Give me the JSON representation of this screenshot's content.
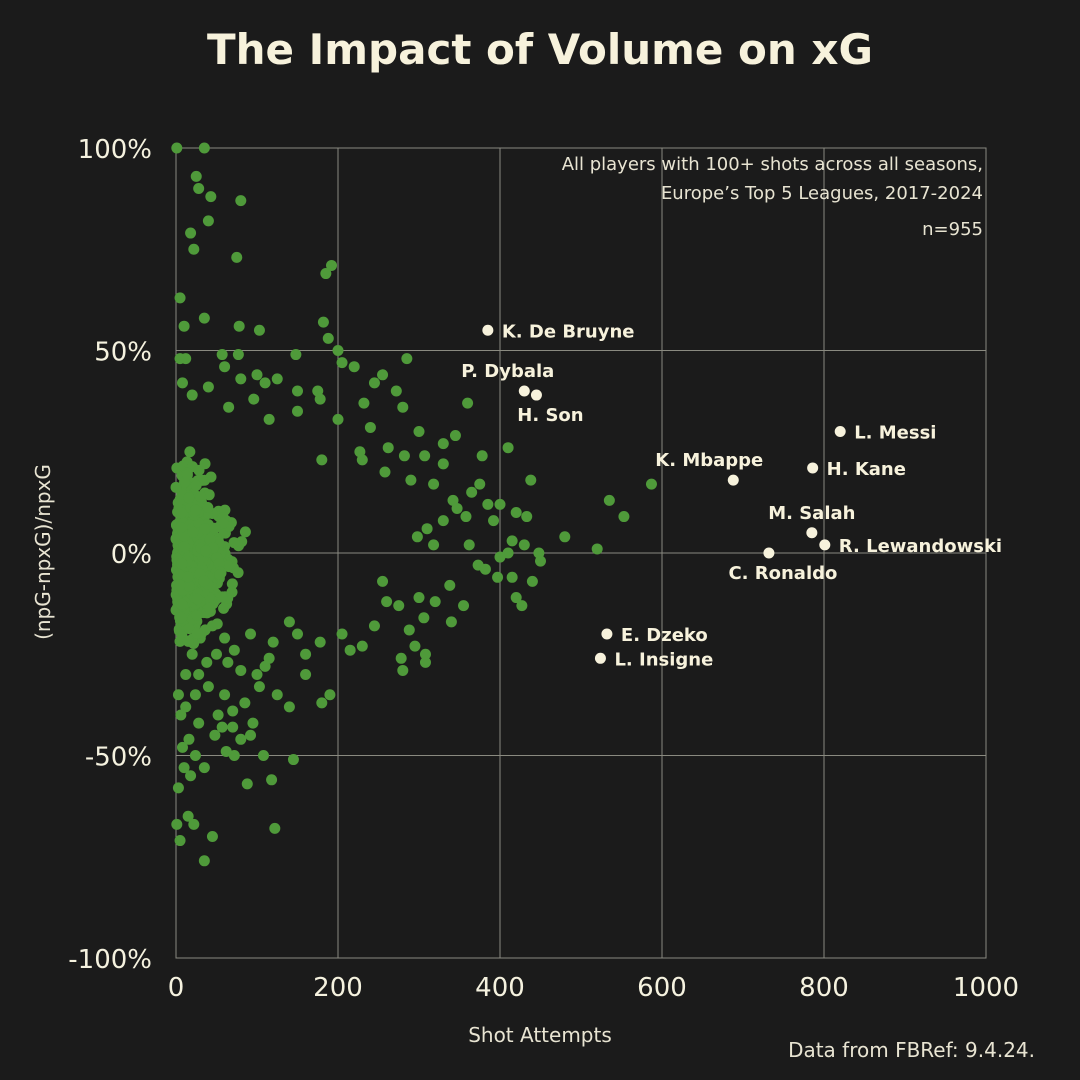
{
  "colors": {
    "background": "#1b1b1b",
    "grid": "#8a8a80",
    "axis_text": "#f5f2df",
    "title": "#f7f2dc",
    "points": "#4f9a3a",
    "highlight": "#f7f2dc"
  },
  "chart_data": {
    "type": "scatter",
    "title": "The Impact of Volume on xG",
    "xlabel": "Shot Attempts",
    "ylabel": "(npG-npxG)/npxG",
    "xlim": [
      0,
      1000
    ],
    "ylim": [
      -100,
      100
    ],
    "x_ticks": [
      0,
      200,
      400,
      600,
      800,
      1000
    ],
    "x_tick_labels": [
      "0",
      "200",
      "400",
      "600",
      "800",
      "1000"
    ],
    "y_ticks": [
      100,
      50,
      0,
      -50,
      -100
    ],
    "y_tick_labels": [
      "100%",
      "50%",
      "0%",
      "-50%",
      "-100%"
    ],
    "grid": true,
    "annotation_lines": [
      "All players with 100+ shots across all seasons,",
      "Europe’s Top 5 Leagues, 2017-2024"
    ],
    "n_label": "n=955",
    "source": "Data from FBRef: 9.4.24.",
    "highlighted": [
      {
        "name": "K. De Bruyne",
        "x": 385,
        "y": 55,
        "label_side": "right"
      },
      {
        "name": "P. Dybala",
        "x": 430,
        "y": 40,
        "label_side": "above-left"
      },
      {
        "name": "H. Son",
        "x": 445,
        "y": 39,
        "label_side": "below"
      },
      {
        "name": "L. Messi",
        "x": 820,
        "y": 30,
        "label_side": "right"
      },
      {
        "name": "H. Kane",
        "x": 786,
        "y": 21,
        "label_side": "right"
      },
      {
        "name": "K. Mbappe",
        "x": 688,
        "y": 18,
        "label_side": "above-left"
      },
      {
        "name": "M. Salah",
        "x": 785,
        "y": 5,
        "label_side": "above"
      },
      {
        "name": "R. Lewandowski",
        "x": 801,
        "y": 2,
        "label_side": "right"
      },
      {
        "name": "C. Ronaldo",
        "x": 732,
        "y": 0,
        "label_side": "below"
      },
      {
        "name": "E. Dzeko",
        "x": 532,
        "y": -20,
        "label_side": "right"
      },
      {
        "name": "L. Insigne",
        "x": 524,
        "y": -26,
        "label_side": "right"
      }
    ],
    "series": [
      {
        "points": [
          [
            1,
            100
          ],
          [
            35,
            100
          ],
          [
            25,
            93
          ],
          [
            28,
            90
          ],
          [
            43,
            88
          ],
          [
            80,
            87
          ],
          [
            40,
            82
          ],
          [
            18,
            79
          ],
          [
            22,
            75
          ],
          [
            75,
            73
          ],
          [
            192,
            71
          ],
          [
            185,
            69
          ],
          [
            5,
            63
          ],
          [
            35,
            58
          ],
          [
            10,
            56
          ],
          [
            78,
            56
          ],
          [
            103,
            55
          ],
          [
            182,
            57
          ],
          [
            188,
            53
          ],
          [
            200,
            50
          ],
          [
            148,
            49
          ],
          [
            57,
            49
          ],
          [
            77,
            49
          ],
          [
            5,
            48
          ],
          [
            285,
            48
          ],
          [
            12,
            48
          ],
          [
            205,
            47
          ],
          [
            220,
            46
          ],
          [
            255,
            44
          ],
          [
            100,
            44
          ],
          [
            110,
            42
          ],
          [
            125,
            43
          ],
          [
            80,
            43
          ],
          [
            60,
            46
          ],
          [
            245,
            42
          ],
          [
            272,
            40
          ],
          [
            8,
            42
          ],
          [
            40,
            41
          ],
          [
            150,
            40
          ],
          [
            175,
            40
          ],
          [
            232,
            37
          ],
          [
            280,
            36
          ],
          [
            360,
            37
          ],
          [
            178,
            38
          ],
          [
            96,
            38
          ],
          [
            65,
            36
          ],
          [
            20,
            39
          ],
          [
            150,
            35
          ],
          [
            115,
            33
          ],
          [
            200,
            33
          ],
          [
            240,
            31
          ],
          [
            300,
            30
          ],
          [
            345,
            29
          ],
          [
            330,
            27
          ],
          [
            262,
            26
          ],
          [
            410,
            26
          ],
          [
            227,
            25
          ],
          [
            180,
            23
          ],
          [
            230,
            23
          ],
          [
            282,
            24
          ],
          [
            307,
            24
          ],
          [
            378,
            24
          ],
          [
            330,
            22
          ],
          [
            258,
            20
          ],
          [
            290,
            18
          ],
          [
            375,
            17
          ],
          [
            438,
            18
          ],
          [
            318,
            17
          ],
          [
            365,
            15
          ],
          [
            342,
            13
          ],
          [
            385,
            12
          ],
          [
            400,
            12
          ],
          [
            420,
            10
          ],
          [
            358,
            9
          ],
          [
            330,
            8
          ],
          [
            347,
            11
          ],
          [
            392,
            8
          ],
          [
            433,
            9
          ],
          [
            310,
            6
          ],
          [
            298,
            4
          ],
          [
            318,
            2
          ],
          [
            362,
            2
          ],
          [
            415,
            3
          ],
          [
            430,
            2
          ],
          [
            448,
            0
          ],
          [
            480,
            4
          ],
          [
            535,
            13
          ],
          [
            553,
            9
          ],
          [
            587,
            17
          ],
          [
            520,
            1
          ],
          [
            410,
            0
          ],
          [
            400,
            -1
          ],
          [
            373,
            -3
          ],
          [
            382,
            -4
          ],
          [
            450,
            -2
          ],
          [
            415,
            -6
          ],
          [
            420,
            -11
          ],
          [
            440,
            -7
          ],
          [
            397,
            -6
          ],
          [
            427,
            -13
          ],
          [
            355,
            -13
          ],
          [
            340,
            -17
          ],
          [
            338,
            -8
          ],
          [
            300,
            -11
          ],
          [
            306,
            -16
          ],
          [
            320,
            -12
          ],
          [
            275,
            -13
          ],
          [
            288,
            -19
          ],
          [
            295,
            -23
          ],
          [
            278,
            -26
          ],
          [
            280,
            -29
          ],
          [
            308,
            -25
          ],
          [
            308,
            -27
          ],
          [
            255,
            -7
          ],
          [
            260,
            -12
          ],
          [
            245,
            -18
          ],
          [
            230,
            -23
          ],
          [
            215,
            -24
          ],
          [
            205,
            -20
          ],
          [
            178,
            -22
          ],
          [
            160,
            -25
          ],
          [
            150,
            -20
          ],
          [
            140,
            -17
          ],
          [
            120,
            -22
          ],
          [
            125,
            -35
          ],
          [
            140,
            -38
          ],
          [
            180,
            -37
          ],
          [
            190,
            -35
          ],
          [
            160,
            -30
          ],
          [
            145,
            -51
          ],
          [
            118,
            -56
          ],
          [
            122,
            -68
          ],
          [
            108,
            -50
          ],
          [
            88,
            -57
          ],
          [
            92,
            -45
          ],
          [
            72,
            -50
          ],
          [
            62,
            -49
          ],
          [
            57,
            -43
          ],
          [
            48,
            -45
          ],
          [
            45,
            -70
          ],
          [
            15,
            -65
          ],
          [
            22,
            -67
          ],
          [
            1,
            -67
          ],
          [
            5,
            -71
          ],
          [
            35,
            -76
          ],
          [
            28,
            -42
          ],
          [
            18,
            -55
          ],
          [
            10,
            -53
          ],
          [
            8,
            -48
          ],
          [
            3,
            -58
          ],
          [
            28,
            -30
          ],
          [
            40,
            -33
          ],
          [
            60,
            -35
          ],
          [
            70,
            -39
          ],
          [
            85,
            -37
          ],
          [
            100,
            -30
          ],
          [
            110,
            -28
          ],
          [
            92,
            -20
          ],
          [
            72,
            -24
          ],
          [
            60,
            -21
          ],
          [
            45,
            -18
          ],
          [
            30,
            -21
          ],
          [
            20,
            -25
          ],
          [
            12,
            -30
          ],
          [
            3,
            -35
          ],
          [
            6,
            -40
          ],
          [
            16,
            -46
          ],
          [
            24,
            -50
          ],
          [
            35,
            -53
          ],
          [
            52,
            -40
          ],
          [
            70,
            -43
          ],
          [
            80,
            -46
          ],
          [
            95,
            -42
          ],
          [
            103,
            -33
          ],
          [
            115,
            -26
          ],
          [
            80,
            -29
          ],
          [
            64,
            -27
          ],
          [
            50,
            -25
          ],
          [
            38,
            -27
          ],
          [
            24,
            -35
          ],
          [
            12,
            -38
          ]
        ]
      }
    ]
  }
}
